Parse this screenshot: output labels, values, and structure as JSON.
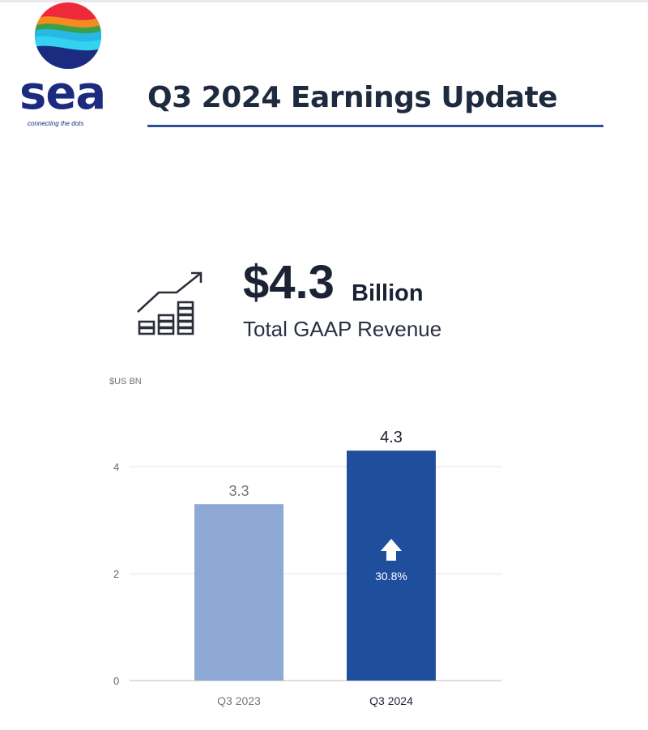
{
  "header": {
    "logo_text": "sea",
    "logo_tagline": "connecting the dots",
    "title": "Q3 2024 Earnings Update"
  },
  "kpi": {
    "value": "$4.3",
    "unit": "Billion",
    "label": "Total GAAP Revenue",
    "icon": "growth-chart-icon"
  },
  "colors": {
    "bar_previous": "#8eaad4",
    "bar_current": "#1f4e9c",
    "title_rule": "#2d4f93"
  },
  "chart_data": {
    "type": "bar",
    "ylabel": "$US BN",
    "categories": [
      "Q3 2023",
      "Q3 2024"
    ],
    "values": [
      3.3,
      4.3
    ],
    "value_labels": [
      "3.3",
      "4.3"
    ],
    "yticks": [
      "0",
      "2",
      "4"
    ],
    "ylim": [
      0,
      4.8
    ],
    "annotation": "30.8%",
    "annotation_icon": "up-arrow-icon",
    "grid": true
  }
}
